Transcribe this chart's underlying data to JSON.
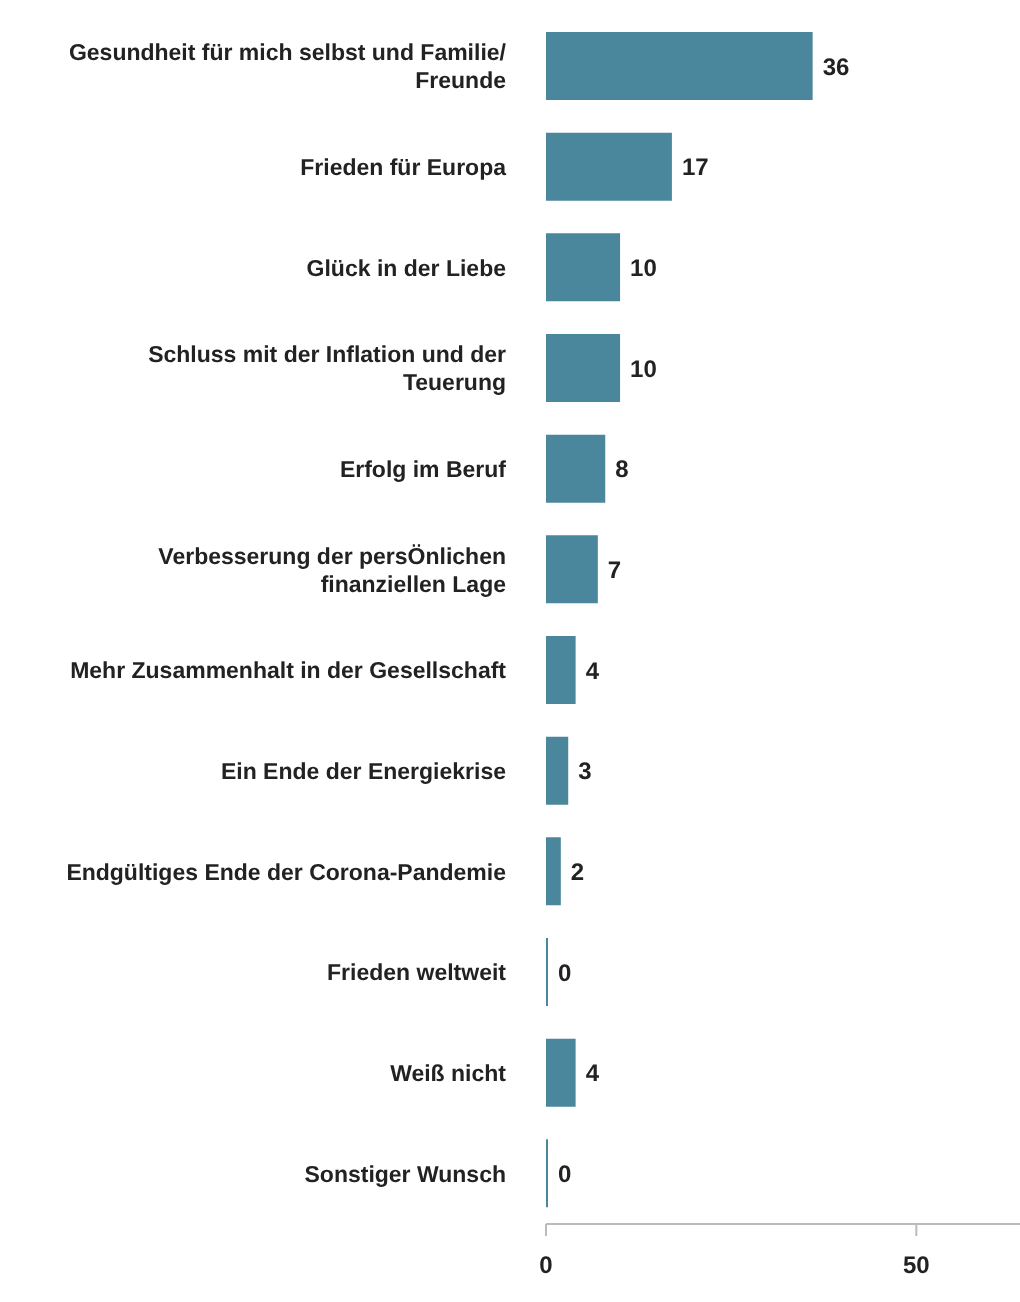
{
  "chart_data": {
    "type": "bar",
    "orientation": "horizontal",
    "categories": [
      "Gesundheit für mich selbst und Familie/ Freunde",
      "Frieden für Europa",
      "Glück in der Liebe",
      "Schluss mit der Inflation und der Teuerung",
      "Erfolg im Beruf",
      "Verbesserung der persÖnlichen finanziellen Lage",
      "Mehr Zusammenhalt in der Gesellschaft",
      "Ein Ende der Energiekrise",
      "Endgültiges Ende der Corona-Pandemie",
      "Frieden weltweit",
      "Weiß nicht",
      "Sonstiger Wunsch"
    ],
    "values": [
      36,
      17,
      10,
      10,
      8,
      7,
      4,
      3,
      2,
      0,
      4,
      0
    ],
    "color": "#4a879c",
    "xlim": [
      0,
      64
    ],
    "xticks": [
      0,
      50
    ],
    "data_labels": true,
    "grid": false,
    "legend": false
  }
}
